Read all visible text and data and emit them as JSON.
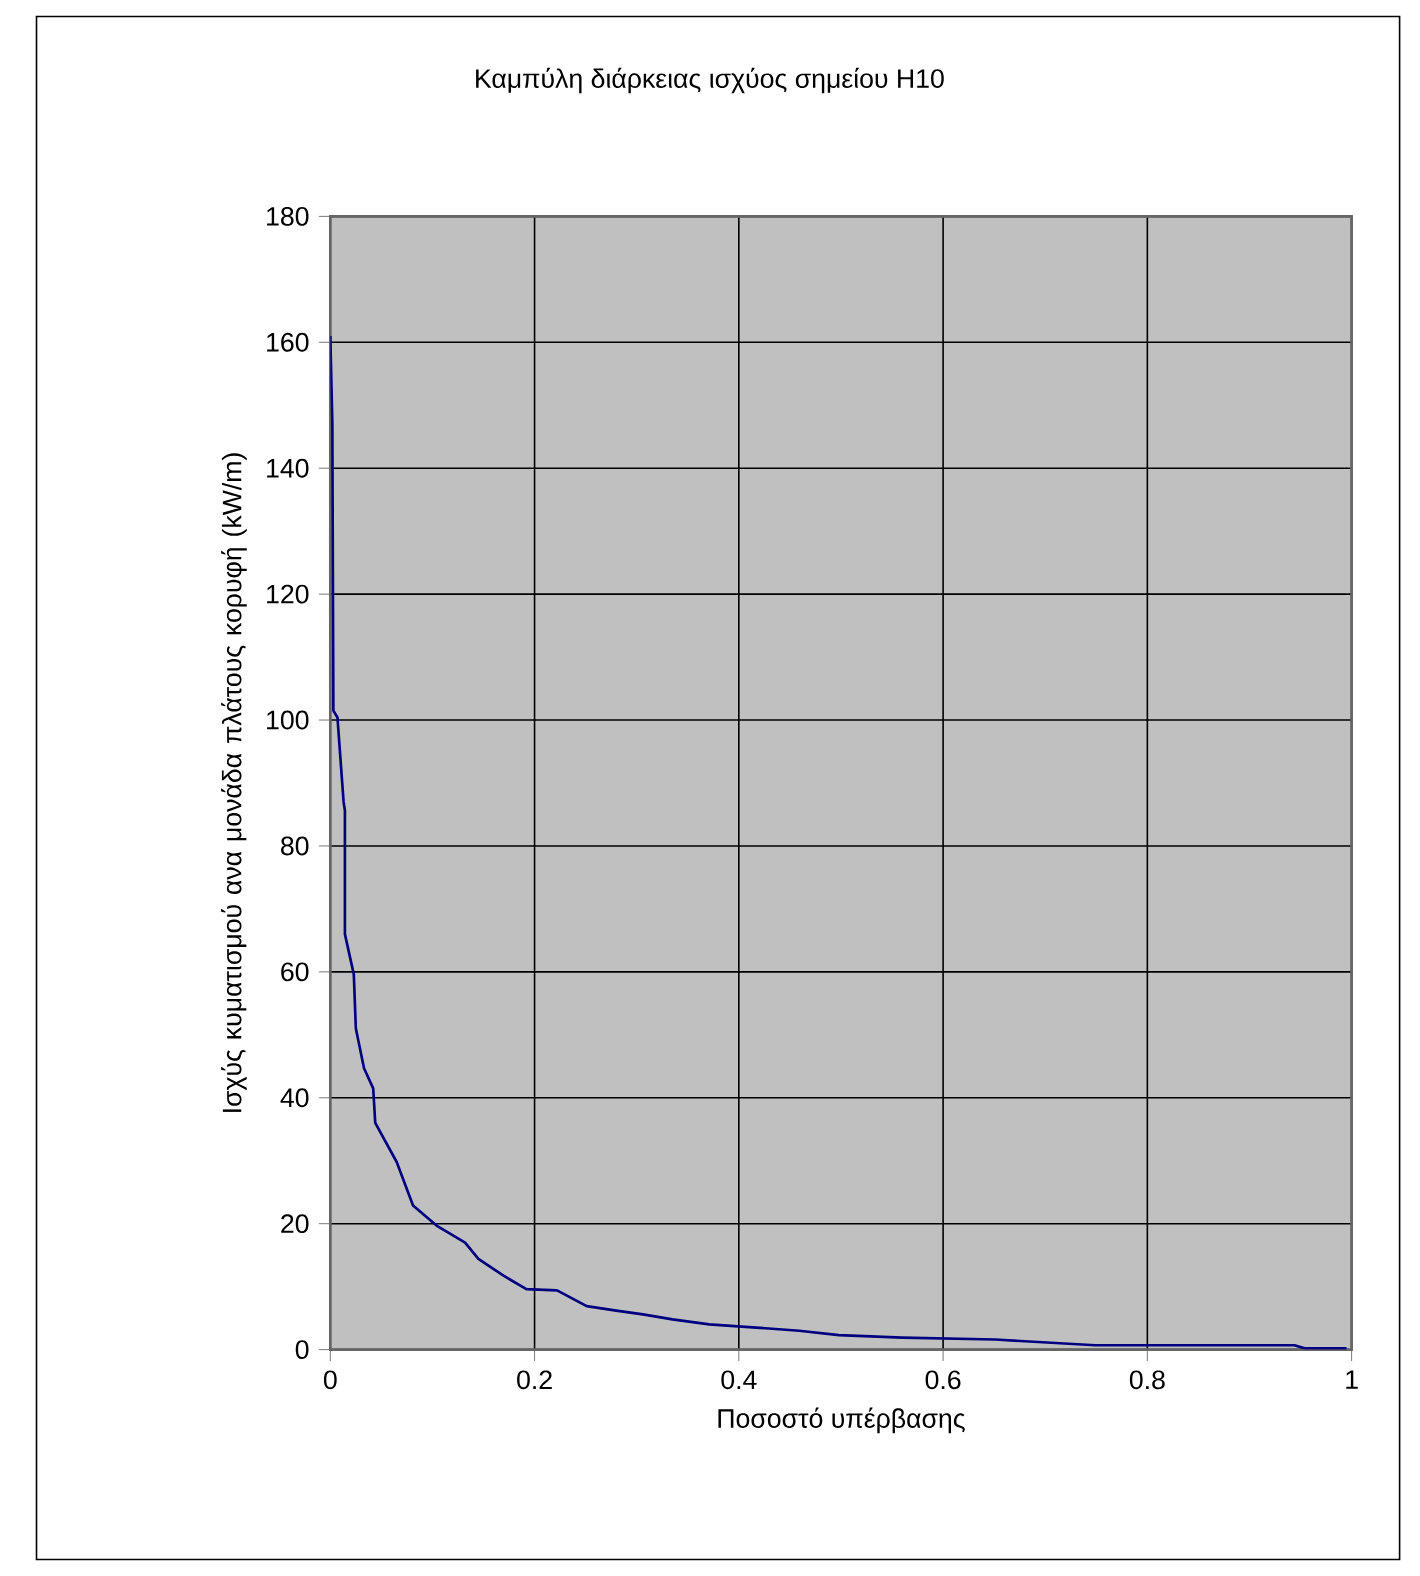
{
  "chart_data": {
    "type": "line",
    "title": "Καμπύλη διάρκειας ισχύος σημείου H10",
    "xlabel": "Ποσοστό υπέρβασης",
    "ylabel": "Ισχύς κυματισμού ανα μονάδα πλάτους κορυφή (kW/m)",
    "series": [
      {
        "color": "#000080",
        "x": [
          0,
          0.002,
          0.003,
          0.007,
          0.013,
          0.0143,
          0.0143,
          0.023,
          0.025,
          0.033,
          0.042,
          0.044,
          0.065,
          0.081,
          0.104,
          0.132,
          0.145,
          0.17,
          0.192,
          0.222,
          0.251,
          0.28,
          0.306,
          0.335,
          0.371,
          0.417,
          0.459,
          0.498,
          0.56,
          0.651,
          0.749,
          0.944,
          0.954,
          0.995
        ],
        "values": [
          161,
          147,
          101.5,
          100.4,
          87,
          85.6,
          66,
          59.6,
          51,
          44.7,
          41.5,
          36,
          29.8,
          22.9,
          19.7,
          17,
          14.4,
          11.7,
          9.6,
          9.4,
          6.9,
          6.2,
          5.6,
          4.8,
          4.0,
          3.5,
          3.0,
          2.3,
          1.9,
          1.6,
          0.7,
          0.7,
          0.2,
          0.2
        ]
      }
    ],
    "xlim": [
      0,
      1
    ],
    "ylim": [
      0,
      180
    ],
    "xticks": [
      0,
      0.2,
      0.4,
      0.6,
      0.8,
      1
    ],
    "yticks": [
      0,
      20,
      40,
      60,
      80,
      100,
      120,
      140,
      160,
      180
    ],
    "grid": true,
    "marker": "none",
    "line_style": "solid"
  }
}
